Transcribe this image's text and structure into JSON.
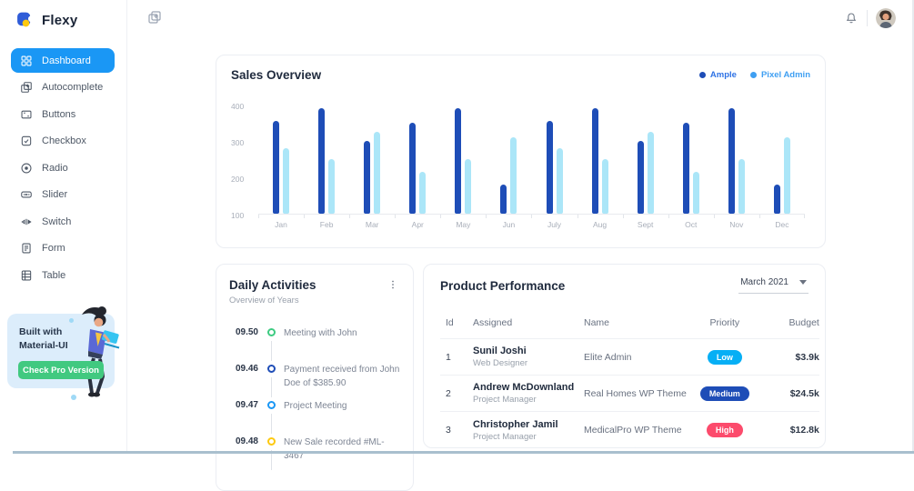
{
  "brand": {
    "name": "Flexy"
  },
  "topbar": {
    "apps_icon": "apps-window-icon",
    "bell_icon": "notification-bell-icon",
    "avatar_icon": "user-avatar-photo"
  },
  "sidebar": {
    "items": [
      {
        "label": "Dashboard",
        "icon": "dashboard",
        "active": true
      },
      {
        "label": "Autocomplete",
        "icon": "autocomplete",
        "active": false
      },
      {
        "label": "Buttons",
        "icon": "buttons",
        "active": false
      },
      {
        "label": "Checkbox",
        "icon": "checkbox",
        "active": false
      },
      {
        "label": "Radio",
        "icon": "radio",
        "active": false
      },
      {
        "label": "Slider",
        "icon": "slider",
        "active": false
      },
      {
        "label": "Switch",
        "icon": "switch",
        "active": false
      },
      {
        "label": "Form",
        "icon": "form",
        "active": false
      },
      {
        "label": "Table",
        "icon": "table",
        "active": false
      }
    ],
    "promo": {
      "line1": "Built with",
      "line2": "Material-UI",
      "button": "Check Pro Version",
      "button_color": "#41c980",
      "bg_color": "#dcedfb"
    }
  },
  "sales": {
    "title": "Sales Overview",
    "legend": [
      {
        "label": "Ample",
        "dot_color": "#1e4db7",
        "text_color": "#2e72e5"
      },
      {
        "label": "Pixel Admin",
        "dot_color": "#3f9ff2",
        "text_color": "#3f9ff2"
      }
    ]
  },
  "chart_data": {
    "type": "bar",
    "title": "Sales Overview",
    "categories": [
      "Jan",
      "Feb",
      "Mar",
      "Apr",
      "May",
      "Jun",
      "July",
      "Aug",
      "Sept",
      "Oct",
      "Nov",
      "Dec"
    ],
    "series": [
      {
        "name": "Ample",
        "color": "#1e4db7",
        "values": [
          355,
          390,
          300,
          350,
          390,
          180,
          355,
          390,
          300,
          350,
          390,
          180
        ]
      },
      {
        "name": "Pixel Admin",
        "color": "#abe6f8",
        "values": [
          280,
          250,
          325,
          215,
          250,
          310,
          280,
          250,
          325,
          215,
          250,
          310
        ]
      }
    ],
    "xlabel": "",
    "ylabel": "",
    "yticks": [
      100,
      200,
      300,
      400
    ],
    "ylim": [
      100,
      400
    ],
    "grid": false,
    "legend_position": "top-right"
  },
  "daily": {
    "title": "Daily Activities",
    "subtitle": "Overview of Years",
    "menu_icon": "kebab-menu-icon",
    "items": [
      {
        "time": "09.50",
        "color": "#3dcb81",
        "text": "Meeting with John"
      },
      {
        "time": "09.46",
        "color": "#1e4db7",
        "text": "Payment received from John Doe of $385.90"
      },
      {
        "time": "09.47",
        "color": "#1a97f5",
        "text": "Project Meeting"
      },
      {
        "time": "09.48",
        "color": "#fdc90f",
        "text": "New Sale recorded #ML-3467"
      }
    ]
  },
  "product": {
    "title": "Product Performance",
    "period": "March 2021",
    "columns": [
      "Id",
      "Assigned",
      "Name",
      "Priority",
      "Budget"
    ],
    "rows": [
      {
        "id": "1",
        "name": "Sunil Joshi",
        "role": "Web Designer",
        "product": "Elite Admin",
        "priority": "Low",
        "priority_color": "#06aff5",
        "budget": "$3.9k"
      },
      {
        "id": "2",
        "name": "Andrew McDownland",
        "role": "Project Manager",
        "product": "Real Homes WP Theme",
        "priority": "Medium",
        "priority_color": "#1e4db7",
        "budget": "$24.5k"
      },
      {
        "id": "3",
        "name": "Christopher Jamil",
        "role": "Project Manager",
        "product": "MedicalPro WP Theme",
        "priority": "High",
        "priority_color": "#fc4b6c",
        "budget": "$12.8k"
      }
    ]
  }
}
